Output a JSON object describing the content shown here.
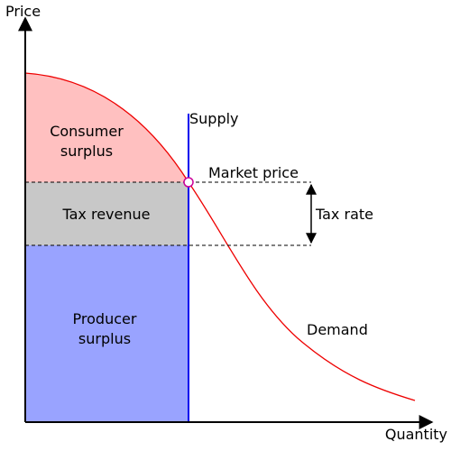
{
  "axes": {
    "x_label": "Quantity",
    "y_label": "Price"
  },
  "regions": {
    "consumer_surplus": {
      "line1": "Consumer",
      "line2": "surplus",
      "color": "#ffc0c0"
    },
    "tax_revenue": {
      "label": "Tax revenue",
      "color": "#c8c8c8"
    },
    "producer_surplus": {
      "line1": "Producer",
      "line2": "surplus",
      "color": "#99a3ff"
    }
  },
  "curves": {
    "supply": {
      "label": "Supply",
      "color": "#0000ee"
    },
    "demand": {
      "label": "Demand",
      "color": "#ee0000"
    }
  },
  "annotations": {
    "market_price": "Market price",
    "tax_rate": "Tax rate"
  },
  "colors": {
    "axis": "#000000",
    "market_point_fill": "#ffffff",
    "market_point_stroke": "#cc0099"
  }
}
